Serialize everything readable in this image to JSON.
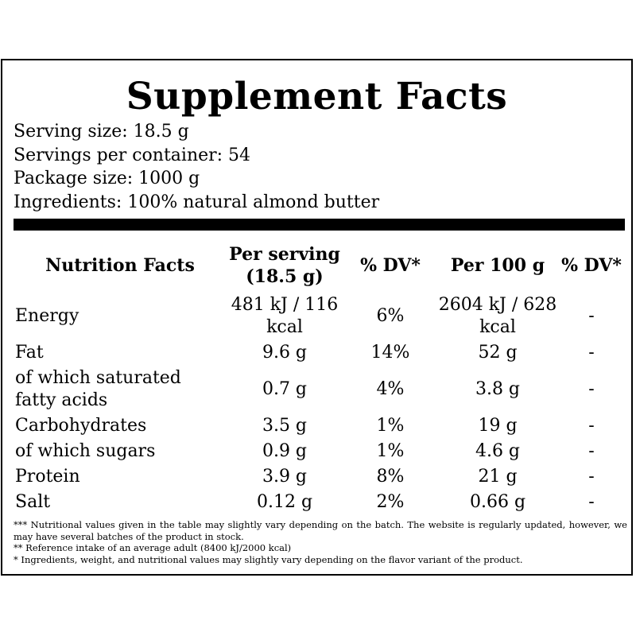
{
  "title": "Supplement Facts",
  "info": [
    "Serving size: 18.5 g",
    "Servings per container: 54",
    "Package size: 1000 g",
    "Ingredients: 100% natural almond butter"
  ],
  "table": {
    "headers": [
      "Nutrition Facts",
      "Per serving (18.5 g)",
      "% DV*",
      "Per 100 g",
      "% DV*"
    ],
    "rows": [
      [
        "Energy",
        "481 kJ / 116 kcal",
        "6%",
        "2604 kJ / 628 kcal",
        "-"
      ],
      [
        "Fat",
        "9.6 g",
        "14%",
        "52 g",
        "-"
      ],
      [
        "of which saturated fatty acids",
        "0.7 g",
        "4%",
        "3.8 g",
        "-"
      ],
      [
        "Carbohydrates",
        "3.5 g",
        "1%",
        "19 g",
        "-"
      ],
      [
        "of which sugars",
        "0.9 g",
        "1%",
        "4.6 g",
        "-"
      ],
      [
        "Protein",
        "3.9 g",
        "8%",
        "21 g",
        "-"
      ],
      [
        "Salt",
        "0.12 g",
        "2%",
        "0.66 g",
        "-"
      ]
    ]
  },
  "notes": [
    "*** Nutritional values given in the table may slightly vary depending on the batch. The website is regularly updated, however, we may have several batches of the product in stock.",
    "** Reference intake of an average adult (8400 kJ/2000 kcal)",
    "* Ingredients, weight, and nutritional values may slightly vary depending on the flavor variant of the product."
  ]
}
